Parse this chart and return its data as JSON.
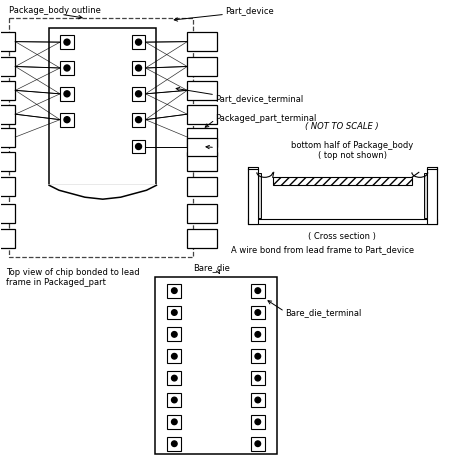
{
  "bg_color": "#ffffff",
  "lc": "#000000",
  "gray": "#888888",
  "fig_width": 4.52,
  "fig_height": 4.64,
  "dpi": 100,
  "fs": 6.0,
  "labels": {
    "package_body_outline": "Package_body outline",
    "part_device": "Part_device",
    "part_device_terminal": "Part_device_terminal",
    "packaged_part_terminal": "Packaged_part_terminal",
    "not_to_scale": "( NOT TO SCALE )",
    "bottom_half": "bottom half of Package_body\n( top not shown)",
    "cross_section": "( Cross section )",
    "wire_bond": "A wire bond from lead frame to Part_device",
    "top_view": "Top view of chip bonded to lead\nframe in Packaged_part",
    "bare_die": "Bare_die",
    "bare_die_terminal": "Bare_die_terminal"
  }
}
